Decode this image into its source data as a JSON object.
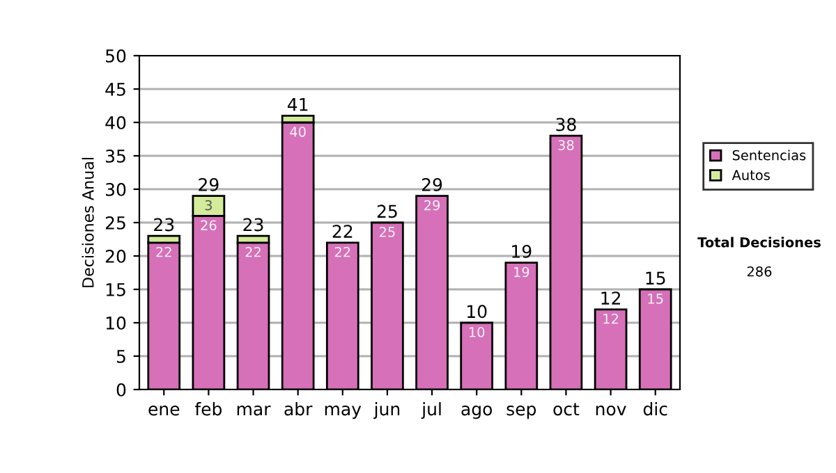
{
  "chart_data": {
    "type": "bar",
    "stacked": true,
    "ylabel": "Decisiones Anual",
    "categories": [
      "ene",
      "feb",
      "mar",
      "abr",
      "may",
      "jun",
      "jul",
      "ago",
      "sep",
      "oct",
      "nov",
      "dic"
    ],
    "series": [
      {
        "name": "Sentencias",
        "color": "#d670b8",
        "values": [
          22,
          26,
          22,
          40,
          22,
          25,
          29,
          10,
          19,
          38,
          12,
          15
        ],
        "value_labels": [
          "22",
          "26",
          "22",
          "40",
          "22",
          "25",
          "29",
          "10",
          "19",
          "38",
          "12",
          "15"
        ]
      },
      {
        "name": "Autos",
        "color": "#d4ec9a",
        "values": [
          1,
          3,
          1,
          1,
          null,
          null,
          null,
          null,
          null,
          null,
          null,
          null
        ],
        "value_labels": [
          null,
          "3",
          null,
          null,
          null,
          null,
          null,
          null,
          null,
          null,
          null,
          null
        ]
      }
    ],
    "totals": [
      "23",
      "29",
      "23",
      "41",
      "22",
      "25",
      "29",
      "10",
      "19",
      "38",
      "12",
      "15"
    ],
    "ylim": [
      0,
      50
    ],
    "yticks": [
      0,
      5,
      10,
      15,
      20,
      25,
      30,
      35,
      40,
      45,
      50
    ],
    "grid": "y",
    "legend": "right",
    "annotations": [
      "Total Decisiones",
      "286"
    ]
  }
}
